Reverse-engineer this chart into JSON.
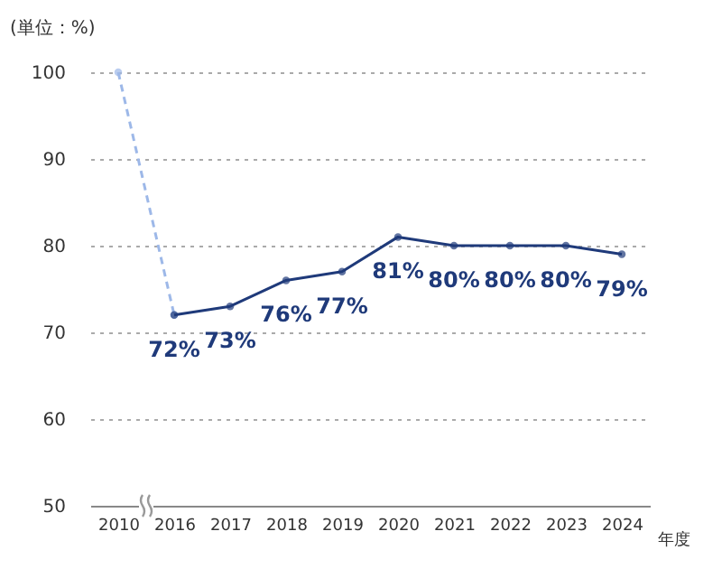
{
  "chart_data": {
    "type": "line",
    "ylabel": "(単位：%)",
    "xlabel": "年度",
    "categories": [
      "2010",
      "2016",
      "2017",
      "2018",
      "2019",
      "2020",
      "2021",
      "2022",
      "2023",
      "2024"
    ],
    "series": [
      {
        "color": "#9db8e8",
        "line_style": "dashed",
        "values": [
          100,
          72,
          null,
          null,
          null,
          null,
          null,
          null,
          null,
          null
        ]
      },
      {
        "color": "#1f3a7a",
        "line_style": "solid",
        "values": [
          null,
          72,
          73,
          76,
          77,
          81,
          80,
          80,
          80,
          79
        ],
        "value_labels": [
          null,
          "72%",
          "73%",
          "76%",
          "77%",
          "81%",
          "80%",
          "80%",
          "80%",
          "79%"
        ]
      }
    ],
    "ylim": [
      50,
      100
    ],
    "yticks": [
      50,
      60,
      70,
      80,
      90,
      100
    ],
    "grid": "y",
    "marker": "circle"
  }
}
